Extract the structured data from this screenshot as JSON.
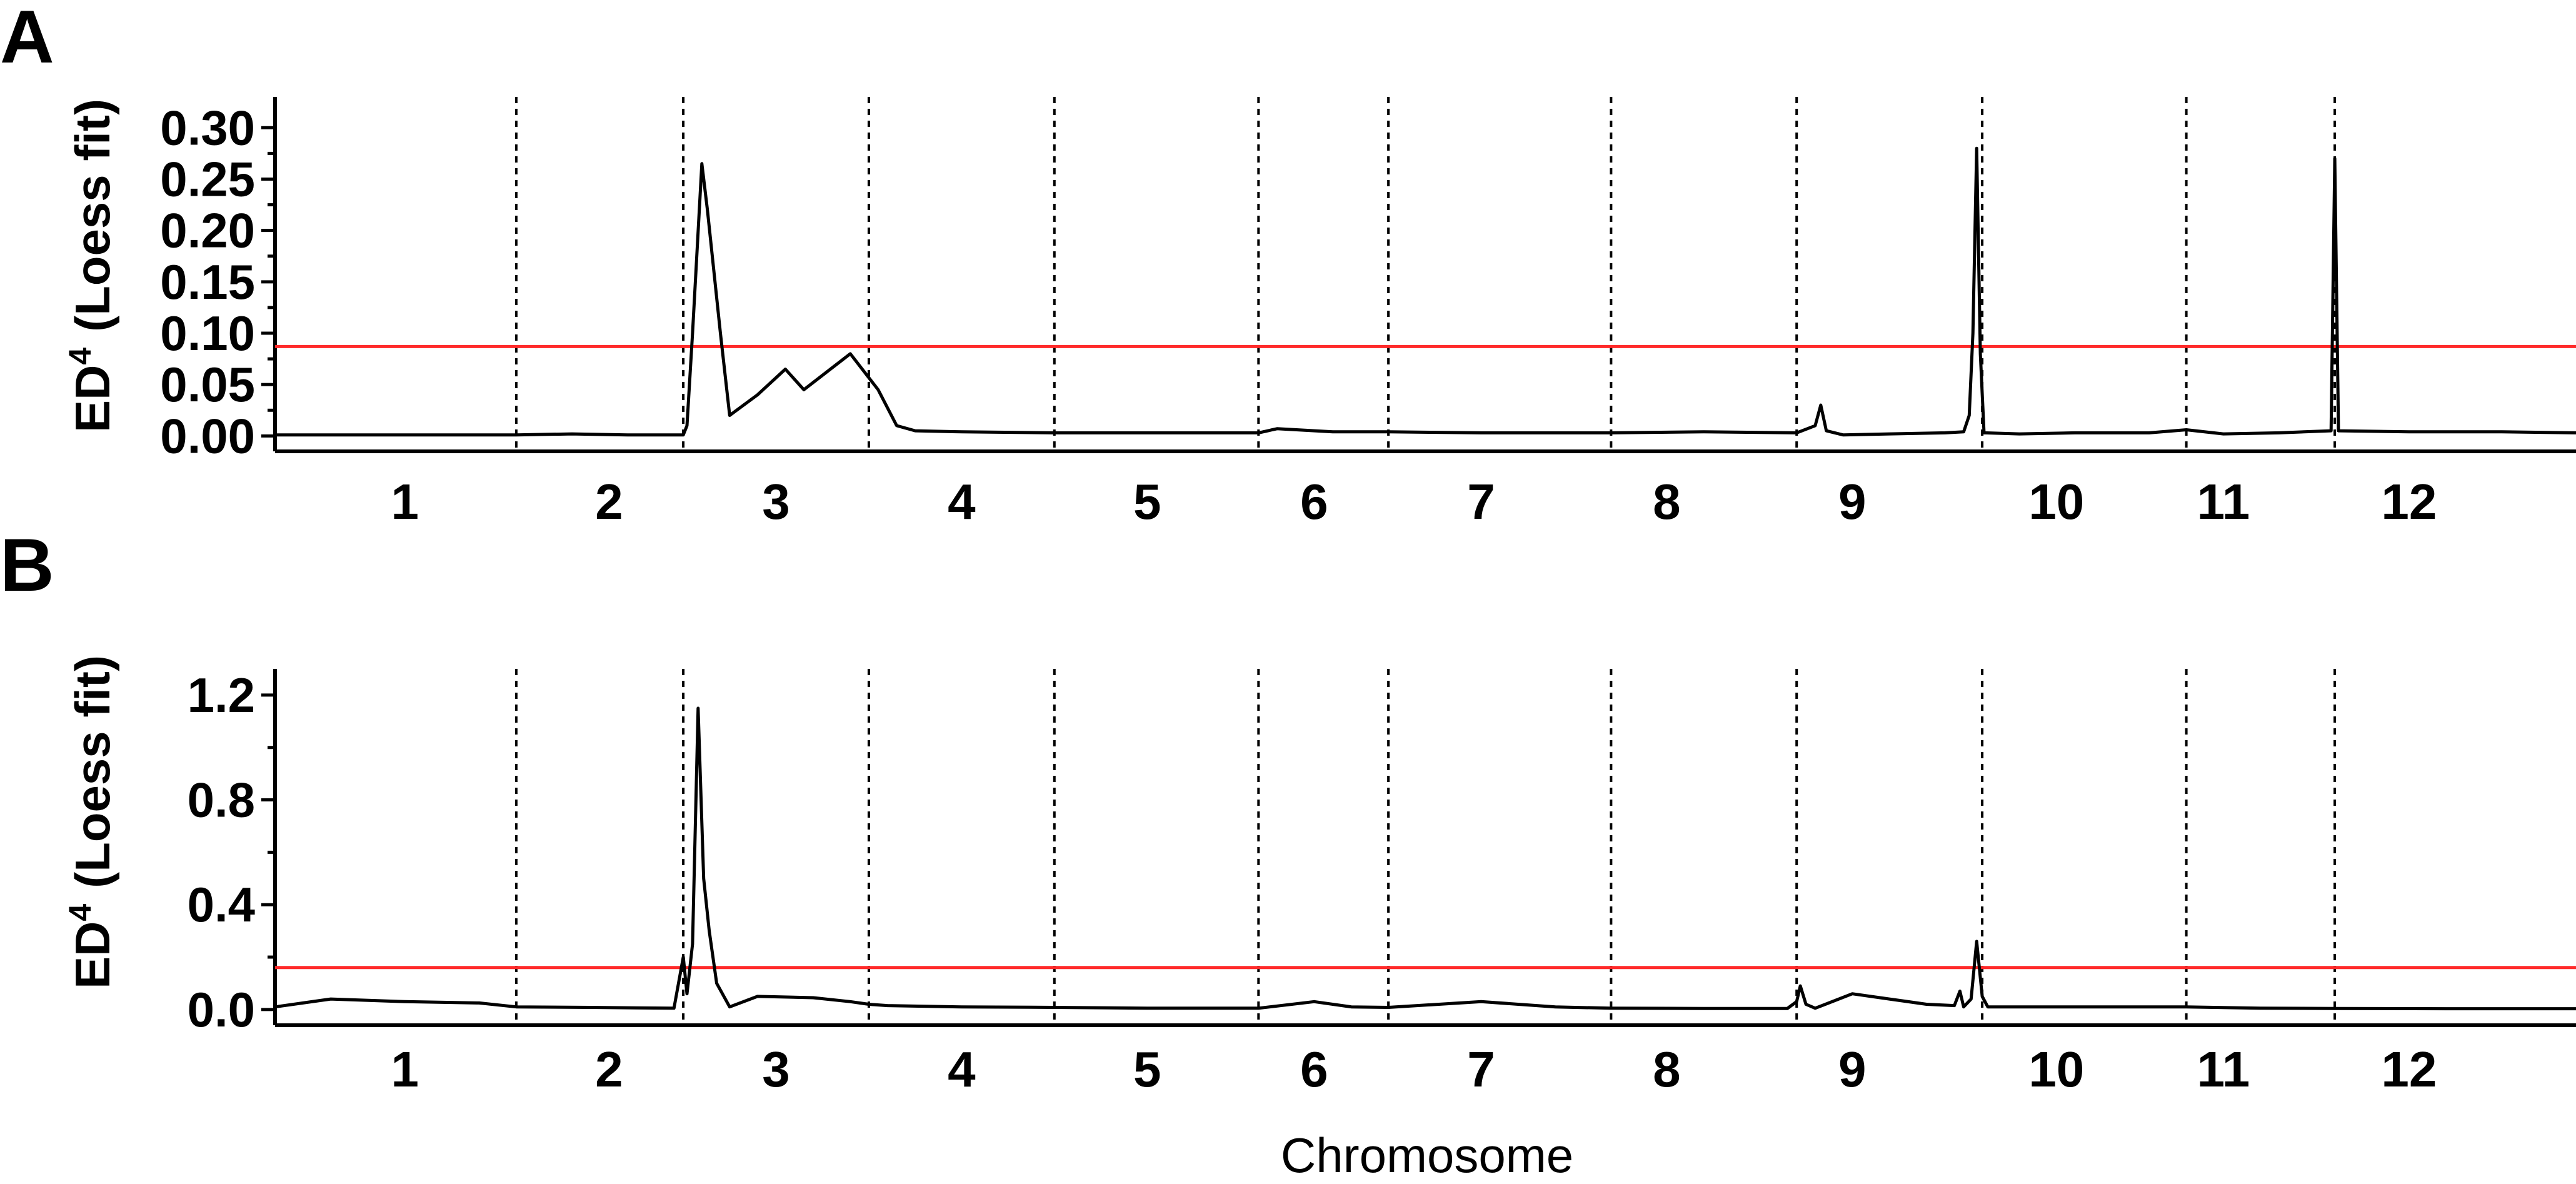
{
  "figure": {
    "xlabel": "Chromosome",
    "chromosome_labels": [
      "1",
      "2",
      "3",
      "4",
      "5",
      "6",
      "7",
      "8",
      "9",
      "10",
      "11",
      "12"
    ]
  },
  "chart_data": [
    {
      "panel": "A",
      "type": "line",
      "xlabel": "Chromosome",
      "ylabel_main": "ED",
      "ylabel_sup": "4",
      "ylabel_rest": "(Loess fit)",
      "ylim": [
        -0.015,
        0.33
      ],
      "yticks": [
        0.0,
        0.05,
        0.1,
        0.15,
        0.2,
        0.25,
        0.3
      ],
      "ytick_labels": [
        "0.00",
        "0.05",
        "0.10",
        "0.15",
        "0.20",
        "0.25",
        "0.30"
      ],
      "grid": false,
      "threshold": {
        "value": 0.087,
        "color": "#ff2a2a"
      },
      "chromosome_boundaries": [
        1.6,
        2.5,
        3.5,
        4.5,
        5.6,
        6.3,
        7.5,
        8.5,
        9.5,
        10.6,
        11.4
      ],
      "x_range": [
        0.3,
        12.7
      ],
      "chromosome_centers": [
        1.0,
        2.1,
        3.0,
        4.0,
        5.0,
        5.9,
        6.8,
        7.8,
        8.8,
        9.9,
        10.8,
        11.8
      ],
      "points": [
        [
          0.3,
          0.001
        ],
        [
          1.0,
          0.001
        ],
        [
          1.6,
          0.001
        ],
        [
          1.9,
          0.002
        ],
        [
          2.2,
          0.001
        ],
        [
          2.5,
          0.001
        ],
        [
          2.52,
          0.01
        ],
        [
          2.55,
          0.1
        ],
        [
          2.6,
          0.265
        ],
        [
          2.63,
          0.22
        ],
        [
          2.7,
          0.1
        ],
        [
          2.75,
          0.02
        ],
        [
          2.9,
          0.04
        ],
        [
          3.05,
          0.065
        ],
        [
          3.15,
          0.045
        ],
        [
          3.4,
          0.08
        ],
        [
          3.55,
          0.045
        ],
        [
          3.65,
          0.01
        ],
        [
          3.75,
          0.005
        ],
        [
          4.0,
          0.004
        ],
        [
          4.5,
          0.003
        ],
        [
          5.0,
          0.003
        ],
        [
          5.6,
          0.003
        ],
        [
          5.7,
          0.007
        ],
        [
          6.0,
          0.004
        ],
        [
          6.3,
          0.004
        ],
        [
          6.8,
          0.003
        ],
        [
          7.5,
          0.003
        ],
        [
          8.0,
          0.004
        ],
        [
          8.5,
          0.003
        ],
        [
          8.6,
          0.01
        ],
        [
          8.63,
          0.03
        ],
        [
          8.66,
          0.005
        ],
        [
          8.75,
          0.001
        ],
        [
          9.0,
          0.002
        ],
        [
          9.3,
          0.003
        ],
        [
          9.4,
          0.004
        ],
        [
          9.43,
          0.02
        ],
        [
          9.45,
          0.1
        ],
        [
          9.47,
          0.28
        ],
        [
          9.49,
          0.08
        ],
        [
          9.51,
          0.003
        ],
        [
          9.7,
          0.002
        ],
        [
          10.0,
          0.003
        ],
        [
          10.4,
          0.003
        ],
        [
          10.6,
          0.006
        ],
        [
          10.8,
          0.002
        ],
        [
          11.1,
          0.003
        ],
        [
          11.38,
          0.005
        ],
        [
          11.4,
          0.27
        ],
        [
          11.42,
          0.005
        ],
        [
          11.8,
          0.004
        ],
        [
          12.3,
          0.004
        ],
        [
          12.7,
          0.003
        ]
      ]
    },
    {
      "panel": "B",
      "type": "line",
      "xlabel": "Chromosome",
      "ylabel_main": "ED",
      "ylabel_sup": "4",
      "ylabel_rest": "(Loess fit)",
      "ylim": [
        -0.06,
        1.3
      ],
      "yticks": [
        0.0,
        0.4,
        0.8,
        1.2
      ],
      "ytick_labels": [
        "0.0",
        "0.4",
        "0.8",
        "1.2"
      ],
      "grid": false,
      "threshold": {
        "value": 0.16,
        "color": "#ff2a2a"
      },
      "chromosome_boundaries": [
        1.6,
        2.5,
        3.5,
        4.5,
        5.6,
        6.3,
        7.5,
        8.5,
        9.5,
        10.6,
        11.4
      ],
      "x_range": [
        0.3,
        12.7
      ],
      "chromosome_centers": [
        1.0,
        2.1,
        3.0,
        4.0,
        5.0,
        5.9,
        6.8,
        7.8,
        8.8,
        9.9,
        10.8,
        11.8
      ],
      "points": [
        [
          0.3,
          0.01
        ],
        [
          0.6,
          0.04
        ],
        [
          1.0,
          0.03
        ],
        [
          1.4,
          0.025
        ],
        [
          1.6,
          0.01
        ],
        [
          2.0,
          0.008
        ],
        [
          2.45,
          0.005
        ],
        [
          2.5,
          0.2
        ],
        [
          2.52,
          0.06
        ],
        [
          2.55,
          0.25
        ],
        [
          2.58,
          1.15
        ],
        [
          2.61,
          0.5
        ],
        [
          2.64,
          0.3
        ],
        [
          2.68,
          0.1
        ],
        [
          2.75,
          0.01
        ],
        [
          2.9,
          0.05
        ],
        [
          3.2,
          0.045
        ],
        [
          3.4,
          0.03
        ],
        [
          3.5,
          0.02
        ],
        [
          3.6,
          0.015
        ],
        [
          4.0,
          0.01
        ],
        [
          4.5,
          0.008
        ],
        [
          5.0,
          0.005
        ],
        [
          5.6,
          0.005
        ],
        [
          5.9,
          0.03
        ],
        [
          6.1,
          0.01
        ],
        [
          6.3,
          0.008
        ],
        [
          6.8,
          0.03
        ],
        [
          7.2,
          0.01
        ],
        [
          7.5,
          0.005
        ],
        [
          8.0,
          0.004
        ],
        [
          8.45,
          0.004
        ],
        [
          8.5,
          0.03
        ],
        [
          8.52,
          0.09
        ],
        [
          8.55,
          0.02
        ],
        [
          8.6,
          0.005
        ],
        [
          8.8,
          0.06
        ],
        [
          9.0,
          0.04
        ],
        [
          9.2,
          0.02
        ],
        [
          9.35,
          0.015
        ],
        [
          9.38,
          0.07
        ],
        [
          9.4,
          0.01
        ],
        [
          9.44,
          0.04
        ],
        [
          9.47,
          0.26
        ],
        [
          9.5,
          0.05
        ],
        [
          9.53,
          0.01
        ],
        [
          9.8,
          0.01
        ],
        [
          10.2,
          0.01
        ],
        [
          10.6,
          0.01
        ],
        [
          11.0,
          0.005
        ],
        [
          11.4,
          0.004
        ],
        [
          12.0,
          0.003
        ],
        [
          12.7,
          0.003
        ]
      ]
    }
  ]
}
